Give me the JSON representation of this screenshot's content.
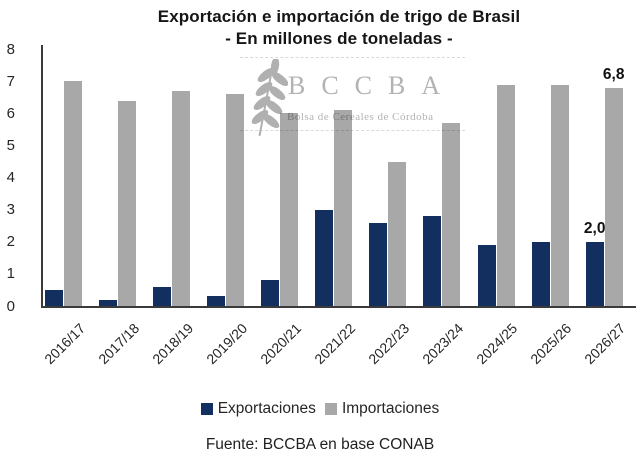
{
  "title": "Exportación e importación de trigo de Brasil",
  "subtitle": "- En millones de toneladas -",
  "source": "Fuente: BCCBA en base CONAB",
  "watermark": {
    "acronym": "BCCBA",
    "name": "Bolsa de Cereales de Córdoba",
    "icon": "wheat-spike-icon",
    "color": "#b3b3b3"
  },
  "colors": {
    "export_bar": "#132f5f",
    "import_bar": "#a8a8a8",
    "axis": "#3a3a3a"
  },
  "chart_data": {
    "type": "bar",
    "title": "Exportación e importación de trigo de Brasil",
    "subtitle": "- En millones de toneladas -",
    "categories": [
      "2016/17",
      "2017/18",
      "2018/19",
      "2019/20",
      "2020/21",
      "2021/22",
      "2022/23",
      "2023/24",
      "2024/25",
      "2025/26",
      "2026/27"
    ],
    "series": [
      {
        "name": "Exportaciones",
        "color": "#132f5f",
        "values": [
          0.5,
          0.2,
          0.6,
          0.3,
          0.8,
          3.0,
          2.6,
          2.8,
          1.9,
          2.0,
          2.0
        ]
      },
      {
        "name": "Importaciones",
        "color": "#a8a8a8",
        "values": [
          7.0,
          6.4,
          6.7,
          6.6,
          6.0,
          6.1,
          4.5,
          5.7,
          6.9,
          6.9,
          6.8
        ]
      }
    ],
    "xlabel": "",
    "ylabel": "",
    "ylim": [
      0,
      8
    ],
    "yticks": [
      0,
      1,
      2,
      3,
      4,
      5,
      6,
      7,
      8
    ],
    "grid": false,
    "legend_position": "bottom",
    "data_labels": [
      {
        "series": "Exportaciones",
        "category": "2026/27",
        "text": "2,0",
        "value": 2.0
      },
      {
        "series": "Importaciones",
        "category": "2026/27",
        "text": "6,8",
        "value": 6.8
      }
    ]
  }
}
